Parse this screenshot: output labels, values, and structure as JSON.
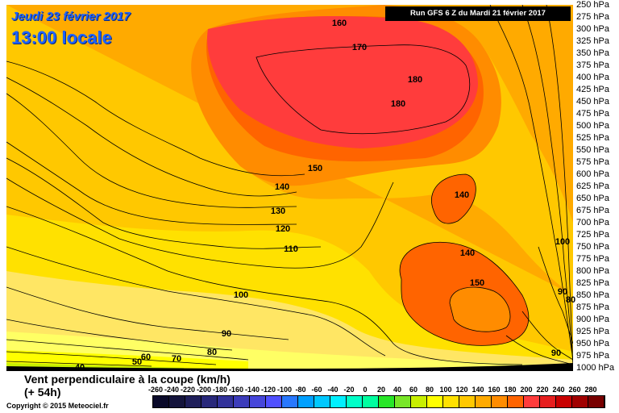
{
  "title": {
    "date": "Jeudi 23 février 2017",
    "time": "13:00 locale"
  },
  "run_info": "Run GFS 6 Z du Mardi 21 février 2017",
  "pressure_levels": [
    "250 hPa",
    "275 hPa",
    "300 hPa",
    "325 hPa",
    "350 hPa",
    "375 hPa",
    "400 hPa",
    "425 hPa",
    "450 hPa",
    "475 hPa",
    "500 hPa",
    "525 hPa",
    "550 hPa",
    "575 hPa",
    "600 hPa",
    "625 hPa",
    "650 hPa",
    "675 hPa",
    "700 hPa",
    "725 hPa",
    "750 hPa",
    "775 hPa",
    "800 hPa",
    "825 hPa",
    "850 hPa",
    "875 hPa",
    "900 hPa",
    "925 hPa",
    "950 hPa",
    "975 hPa",
    "1000 hPa"
  ],
  "contour_labels": [
    "160",
    "170",
    "180",
    "180",
    "150",
    "140",
    "140",
    "130",
    "120",
    "110",
    "140",
    "150",
    "100",
    "100",
    "90",
    "80",
    "90",
    "80",
    "70",
    "60",
    "50",
    "40",
    "90"
  ],
  "caption": {
    "line1": "Vent perpendiculaire à la coupe (km/h)",
    "line2": "(+ 54h)"
  },
  "copyright": "Copyright © 2015 Meteociel.fr",
  "scale": {
    "labels": [
      "-260",
      "-240",
      "-220",
      "-200",
      "-180",
      "-160",
      "-140",
      "-120",
      "-100",
      "-80",
      "-60",
      "-40",
      "-20",
      "0",
      "20",
      "40",
      "60",
      "80",
      "100",
      "120",
      "140",
      "160",
      "180",
      "200",
      "220",
      "240",
      "260",
      "280"
    ],
    "colors": [
      "#0a0a2a",
      "#14143c",
      "#1e1e5a",
      "#28287a",
      "#32329a",
      "#3c3cba",
      "#4646da",
      "#5050ff",
      "#2878ff",
      "#00a0ff",
      "#00c8ff",
      "#00f0ff",
      "#00ffc8",
      "#00ffa0",
      "#28e628",
      "#78e628",
      "#c8f000",
      "#ffff00",
      "#ffe100",
      "#ffc800",
      "#ffaa00",
      "#ff8c00",
      "#ff6400",
      "#ff3c3c",
      "#e61e1e",
      "#c80000",
      "#a00000",
      "#780000"
    ]
  }
}
